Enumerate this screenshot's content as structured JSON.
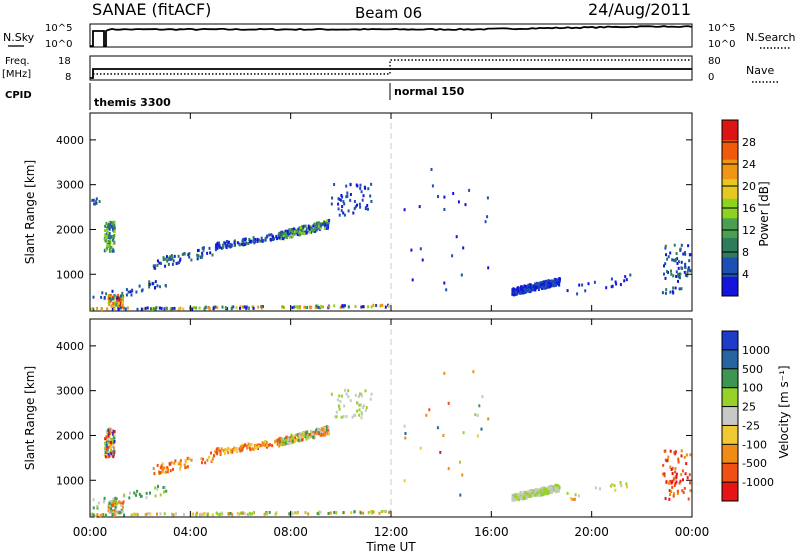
{
  "header": {
    "station": "SANAE (fitACF)",
    "beam": "Beam 06",
    "date": "24/Aug/2011"
  },
  "top_panels": {
    "nsky_label": "N.Sky",
    "nsky_ticks_left": [
      "10^5",
      "10^0"
    ],
    "nsearch_ticks_right": [
      "10^5",
      "10^0"
    ],
    "nsearch_label": "N.Search",
    "freq_label_line1": "Freq.",
    "freq_label_line2": "[MHz]",
    "freq_ticks": [
      "18",
      "8"
    ],
    "nave_ticks": [
      "80",
      "0"
    ],
    "nave_label": "Nave",
    "cpid_label": "CPID",
    "cpid_modes": [
      {
        "label": "themis 3300",
        "start_hour": 0
      },
      {
        "label": "normal 150",
        "start_hour": 12
      }
    ]
  },
  "x_axis": {
    "ticks": [
      "00:00",
      "04:00",
      "08:00",
      "12:00",
      "16:00",
      "20:00",
      "00:00"
    ],
    "label": "Time UT"
  },
  "colors": {
    "power": [
      "#1414dc",
      "#1e50b4",
      "#2e7d5a",
      "#4aa050",
      "#8cd21e",
      "#e6c81e",
      "#f09614",
      "#f05a0a",
      "#dc1414"
    ],
    "velocity": [
      "#e61414",
      "#f05014",
      "#f08c14",
      "#f0c832",
      "#c8c8c8",
      "#96d228",
      "#3c9650",
      "#2864a0",
      "#1e3cc8"
    ]
  },
  "chart_data": [
    {
      "type": "heatmap",
      "name": "power",
      "xlabel": "",
      "ylabel": "Slant Range [km]",
      "xlim_hours": [
        0,
        24
      ],
      "ylim_km": [
        180,
        4600
      ],
      "yticks": [
        1000,
        2000,
        3000,
        4000
      ],
      "colorbar": {
        "label": "Power [dB]",
        "ticks": [
          4,
          8,
          12,
          16,
          20,
          24,
          28
        ],
        "range": [
          0,
          32
        ]
      },
      "patches": [
        {
          "t0": 0.55,
          "t1": 0.95,
          "r0": 1500,
          "r1": 2150,
          "n": 90,
          "lv": [
            1,
            4
          ],
          "seed": 11
        },
        {
          "t0": 0.05,
          "t1": 0.35,
          "r0": 2550,
          "r1": 2700,
          "n": 8,
          "lv": [
            1,
            2
          ],
          "seed": 12
        },
        {
          "t0": 0.7,
          "t1": 1.3,
          "r0": 250,
          "r1": 520,
          "n": 70,
          "lv": [
            3,
            8
          ],
          "seed": 13
        },
        {
          "t0": 0.1,
          "t1": 3.0,
          "r0": 350,
          "r1": 900,
          "n": 40,
          "lv": [
            0,
            2
          ],
          "seed": 14
        },
        {
          "t0": 2.5,
          "t1": 5.0,
          "r0": 1100,
          "r1": 1650,
          "n": 60,
          "lv": [
            0,
            2
          ],
          "seed": 15
        },
        {
          "t0": 5.0,
          "t1": 7.5,
          "r0": 1550,
          "r1": 1900,
          "n": 90,
          "lv": [
            0,
            2
          ],
          "seed": 16
        },
        {
          "t0": 7.5,
          "t1": 9.5,
          "r0": 1750,
          "r1": 2200,
          "n": 200,
          "lv": [
            0,
            4
          ],
          "seed": 17
        },
        {
          "t0": 9.6,
          "t1": 11.2,
          "r0": 2300,
          "r1": 3000,
          "n": 50,
          "lv": [
            0,
            1
          ],
          "seed": 18
        },
        {
          "t0": 0.0,
          "t1": 12.0,
          "r0": 190,
          "r1": 300,
          "n": 140,
          "lv": [
            0,
            6
          ],
          "seed": 19
        },
        {
          "t0": 12.5,
          "t1": 16.0,
          "r0": 600,
          "r1": 3500,
          "n": 25,
          "lv": [
            0,
            1
          ],
          "seed": 20
        },
        {
          "t0": 16.8,
          "t1": 18.7,
          "r0": 520,
          "r1": 900,
          "n": 300,
          "lv": [
            0,
            1
          ],
          "seed": 21
        },
        {
          "t0": 19.0,
          "t1": 21.5,
          "r0": 500,
          "r1": 1000,
          "n": 18,
          "lv": [
            0,
            1
          ],
          "seed": 22
        },
        {
          "t0": 22.8,
          "t1": 23.9,
          "r0": 550,
          "r1": 1650,
          "n": 70,
          "lv": [
            0,
            2
          ],
          "seed": 23
        }
      ]
    },
    {
      "type": "heatmap",
      "name": "velocity",
      "xlabel": "Time UT",
      "ylabel": "Slant Range [km]",
      "xlim_hours": [
        0,
        24
      ],
      "ylim_km": [
        180,
        4600
      ],
      "yticks": [
        1000,
        2000,
        3000,
        4000
      ],
      "colorbar": {
        "label": "Velocity [m s⁻¹]",
        "ticks": [
          "1000",
          "500",
          "100",
          "25",
          "-25",
          "-100",
          "-500",
          "-1000"
        ]
      },
      "patches": [
        {
          "t0": 0.55,
          "t1": 0.95,
          "r0": 1500,
          "r1": 2150,
          "n": 90,
          "lv": [
            0,
            8
          ],
          "seed": 31
        },
        {
          "t0": 0.7,
          "t1": 1.3,
          "r0": 250,
          "r1": 520,
          "n": 60,
          "lv": [
            1,
            6
          ],
          "seed": 32
        },
        {
          "t0": 0.1,
          "t1": 3.0,
          "r0": 350,
          "r1": 900,
          "n": 35,
          "lv": [
            4,
            6
          ],
          "seed": 33
        },
        {
          "t0": 2.5,
          "t1": 5.0,
          "r0": 1100,
          "r1": 1650,
          "n": 60,
          "lv": [
            1,
            3
          ],
          "seed": 34
        },
        {
          "t0": 5.0,
          "t1": 7.5,
          "r0": 1550,
          "r1": 1900,
          "n": 90,
          "lv": [
            1,
            3
          ],
          "seed": 35
        },
        {
          "t0": 7.5,
          "t1": 9.5,
          "r0": 1750,
          "r1": 2200,
          "n": 200,
          "lv": [
            1,
            6
          ],
          "seed": 36
        },
        {
          "t0": 9.6,
          "t1": 11.2,
          "r0": 2300,
          "r1": 3000,
          "n": 45,
          "lv": [
            4,
            5
          ],
          "seed": 37
        },
        {
          "t0": 0.0,
          "t1": 12.0,
          "r0": 190,
          "r1": 300,
          "n": 120,
          "lv": [
            2,
            6
          ],
          "seed": 38
        },
        {
          "t0": 12.5,
          "t1": 16.0,
          "r0": 600,
          "r1": 3500,
          "n": 25,
          "lv": [
            0,
            7
          ],
          "seed": 39
        },
        {
          "t0": 16.8,
          "t1": 18.7,
          "r0": 520,
          "r1": 900,
          "n": 300,
          "lv": [
            4,
            5
          ],
          "seed": 40
        },
        {
          "t0": 19.0,
          "t1": 21.5,
          "r0": 500,
          "r1": 1000,
          "n": 18,
          "lv": [
            2,
            5
          ],
          "seed": 41
        },
        {
          "t0": 22.8,
          "t1": 23.9,
          "r0": 550,
          "r1": 1650,
          "n": 70,
          "lv": [
            0,
            2
          ],
          "seed": 42
        }
      ]
    }
  ]
}
